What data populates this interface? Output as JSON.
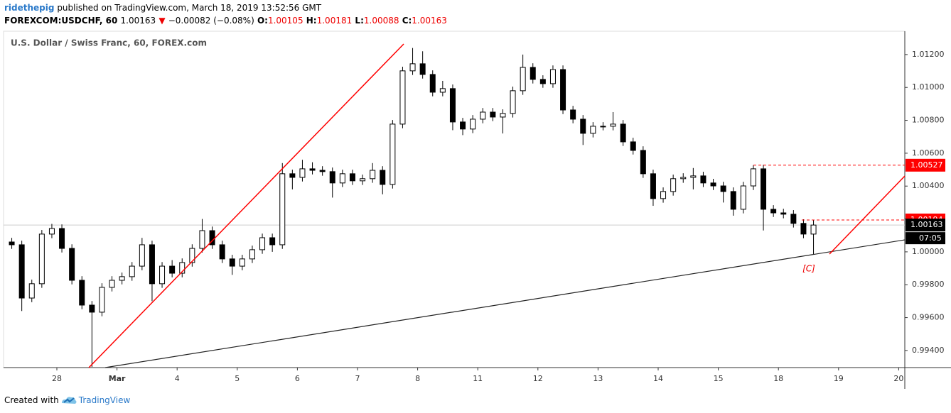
{
  "header": {
    "author": "ridethepig",
    "published": "published on TradingView.com, March 18, 2019 13:52:56 GMT",
    "symbol": "FOREXCOM:USDCHF, 60",
    "last": "1.00163",
    "change": "−0.00082 (−0.08%)",
    "ohlc": [
      {
        "label": "O:",
        "value": "1.00105"
      },
      {
        "label": "H:",
        "value": "1.00181"
      },
      {
        "label": "L:",
        "value": "1.00088"
      },
      {
        "label": "C:",
        "value": "1.00163"
      }
    ]
  },
  "chart_data": {
    "type": "candlestick",
    "title": "U.S. Dollar / Swiss Franc, 60, FOREX.com",
    "categories": [
      null,
      null,
      null,
      null,
      null,
      "28",
      null,
      null,
      null,
      null,
      null,
      "Mar",
      null,
      null,
      null,
      null,
      null,
      "4",
      null,
      null,
      null,
      null,
      null,
      "5",
      null,
      null,
      null,
      null,
      null,
      "6",
      null,
      null,
      null,
      null,
      null,
      "7",
      null,
      null,
      null,
      null,
      null,
      "8",
      null,
      null,
      null,
      null,
      null,
      "11",
      null,
      null,
      null,
      null,
      null,
      "12",
      null,
      null,
      null,
      null,
      null,
      "13",
      null,
      null,
      null,
      null,
      null,
      "14",
      null,
      null,
      null,
      null,
      null,
      "15",
      null,
      null,
      null,
      null,
      null,
      "18",
      null,
      null,
      null,
      null,
      null,
      "19",
      null,
      null,
      null,
      null,
      null,
      "20"
    ],
    "open": [
      1.0006,
      1.00043,
      0.99719,
      0.99806,
      1.00108,
      1.00142,
      1.00021,
      0.99827,
      0.99676,
      0.99633,
      0.99784,
      0.99827,
      0.99849,
      0.99913,
      1.00043,
      0.99806,
      0.99913,
      0.9987,
      0.99935,
      1.00021,
      1.00129,
      1.00043,
      0.99957,
      0.99913,
      0.99957,
      1.00013,
      1.00086,
      1.00043,
      1.00475,
      1.00453,
      1.00505,
      1.00496,
      1.00488,
      1.00419,
      1.00475,
      1.00432,
      1.00445,
      1.00496,
      1.0041,
      1.00777,
      1.01101,
      1.01144,
      1.01079,
      1.00971,
      1.00993,
      1.0079,
      1.00747,
      1.00807,
      1.0085,
      1.0082,
      1.00842,
      1.0098,
      1.01122,
      1.01049,
      1.01023,
      1.01109,
      1.00863,
      1.00807,
      1.00721,
      1.00764,
      1.00764,
      1.00777,
      1.00669,
      1.00617,
      1.00475,
      1.00324,
      1.00367,
      1.00445,
      1.00453,
      1.00462,
      1.00419,
      1.00401,
      1.00367,
      1.00259,
      1.00401,
      1.00505,
      1.00259,
      1.00237,
      1.00229,
      1.00173,
      1.00108,
      null,
      null,
      null,
      null,
      null,
      null,
      null,
      null,
      null
    ],
    "high": [
      1.00085,
      1.00068,
      0.99831,
      1.00133,
      1.0017,
      1.00167,
      1.00046,
      0.99852,
      0.99701,
      0.99809,
      0.99852,
      0.99874,
      0.99938,
      1.00085,
      1.00068,
      0.99938,
      0.9995,
      0.9996,
      1.00046,
      1.002,
      1.00154,
      1.00068,
      0.99982,
      0.99982,
      1.00038,
      1.00111,
      1.00111,
      1.0054,
      1.005,
      1.0056,
      1.00545,
      1.00521,
      1.00513,
      1.005,
      1.005,
      1.0047,
      1.0054,
      1.00521,
      1.00802,
      1.01126,
      1.0124,
      1.0122,
      1.01104,
      1.0104,
      1.01018,
      1.00815,
      1.00832,
      1.00875,
      1.00875,
      1.00867,
      1.01005,
      1.012,
      1.01147,
      1.01074,
      1.01134,
      1.01134,
      1.00888,
      1.00832,
      1.00789,
      1.00789,
      1.0085,
      1.00802,
      1.00694,
      1.00642,
      1.005,
      1.00392,
      1.0047,
      1.00478,
      1.0051,
      1.00487,
      1.00444,
      1.00426,
      1.00392,
      1.00426,
      1.00527,
      1.0053,
      1.00284,
      1.00262,
      1.00254,
      1.00198,
      1.00194,
      null,
      null,
      null,
      null,
      null,
      null,
      null,
      null,
      null
    ],
    "low": [
      1.00018,
      0.9964,
      0.99694,
      0.99781,
      1.00083,
      0.99996,
      0.99802,
      0.99651,
      0.993,
      0.99608,
      0.99759,
      0.99802,
      0.99824,
      0.99888,
      0.997,
      0.99781,
      0.99845,
      0.99845,
      0.9991,
      0.99996,
      1.00018,
      0.99932,
      0.9986,
      0.99888,
      0.99932,
      0.99988,
      1.0,
      1.00018,
      1.0038,
      1.00428,
      1.00471,
      1.00463,
      1.0033,
      1.00394,
      1.00407,
      1.00407,
      1.0042,
      1.0035,
      1.00385,
      1.00752,
      1.01076,
      1.01054,
      1.00946,
      1.00946,
      1.0074,
      1.0071,
      1.00722,
      1.00782,
      1.00795,
      1.0072,
      1.00817,
      1.00955,
      1.01024,
      1.00998,
      1.00998,
      1.00838,
      1.00782,
      1.0065,
      1.00696,
      1.00739,
      1.00739,
      1.00644,
      1.00592,
      1.0045,
      1.0028,
      1.00299,
      1.00342,
      1.0042,
      1.0038,
      1.00394,
      1.00376,
      1.003,
      1.0022,
      1.00234,
      1.00376,
      1.0013,
      1.00212,
      1.00204,
      1.00148,
      1.00083,
      0.99985,
      null,
      null,
      null,
      null,
      null,
      null,
      null,
      null,
      null
    ],
    "close": [
      1.00043,
      0.99719,
      0.99806,
      1.00108,
      1.00142,
      1.00021,
      0.99827,
      0.99676,
      0.99633,
      0.99784,
      0.99827,
      0.99849,
      0.99913,
      1.00043,
      0.99806,
      0.99913,
      0.9987,
      0.99935,
      1.00021,
      1.00129,
      1.00043,
      0.99957,
      0.99913,
      0.99957,
      1.00013,
      1.00086,
      1.00043,
      1.00475,
      1.00453,
      1.00505,
      1.00496,
      1.00488,
      1.00419,
      1.00475,
      1.00432,
      1.00445,
      1.00496,
      1.0041,
      1.00777,
      1.01101,
      1.01144,
      1.01079,
      1.00971,
      1.00993,
      1.0079,
      1.00747,
      1.00807,
      1.0085,
      1.0082,
      1.00842,
      1.0098,
      1.01122,
      1.01049,
      1.01023,
      1.01109,
      1.00863,
      1.00807,
      1.00721,
      1.00764,
      1.00764,
      1.00777,
      1.00669,
      1.00617,
      1.00475,
      1.00324,
      1.00367,
      1.00445,
      1.00453,
      1.00462,
      1.00419,
      1.00401,
      1.00367,
      1.00259,
      1.00401,
      1.00505,
      1.00259,
      1.00237,
      1.00229,
      1.00173,
      1.00108,
      1.00163,
      null,
      null,
      null,
      null,
      null,
      null,
      null,
      null,
      null
    ],
    "up_color": "#ffffff",
    "down_color": "#000000",
    "ylim": [
      0.99296,
      1.01342
    ],
    "yticks": [
      {
        "value": 0.994,
        "label": "0.99400"
      },
      {
        "value": 0.996,
        "label": "0.99600"
      },
      {
        "value": 0.998,
        "label": "0.99800"
      },
      {
        "value": 1.0,
        "label": "1.00000"
      },
      {
        "value": 1.002,
        "label": "1.00200"
      },
      {
        "value": 1.004,
        "label": "1.00400"
      },
      {
        "value": 1.006,
        "label": "1.00600"
      },
      {
        "value": 1.008,
        "label": "1.00800"
      },
      {
        "value": 1.01,
        "label": "1.01000"
      },
      {
        "value": 1.012,
        "label": "1.01200"
      }
    ],
    "price_lines": [
      {
        "value": 1.00527,
        "color": "#ff0000"
      },
      {
        "value": 1.00194,
        "color": "#ff0000"
      }
    ],
    "last_price": 1.00163,
    "countdown": "07:05",
    "annotations": [
      "[C]"
    ]
  },
  "footer": {
    "created_with": "Created with",
    "brand": "TradingView"
  }
}
